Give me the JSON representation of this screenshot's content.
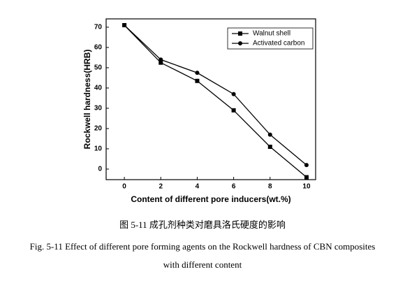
{
  "chart_data": {
    "type": "line",
    "x_label": "Content of different pore inducers(wt.%)",
    "y_label": "Rockwell hardness(HRB)",
    "x": [
      0,
      2,
      4,
      6,
      8,
      10
    ],
    "series": [
      {
        "name": "Walnut shell",
        "color": "#000000",
        "marker": "square",
        "values": [
          71,
          52.5,
          43.5,
          29,
          11,
          -4
        ]
      },
      {
        "name": "Activated carbon",
        "color": "#000000",
        "marker": "circle",
        "values": [
          71,
          54,
          47.5,
          37,
          17,
          2
        ]
      }
    ],
    "xlim": [
      -1,
      10.5
    ],
    "xticks": [
      0,
      2,
      4,
      6,
      8,
      10
    ],
    "ylim": [
      -5.2,
      74.1
    ],
    "yticks": [
      0,
      10,
      20,
      30,
      40,
      50,
      60,
      70
    ],
    "legend": "upper right",
    "caption": [
      "图 5-11 成孔剂种类对磨具洛氏硬度的影响",
      "Fig. 5-11 Effect of different pore forming agents on the Rockwell hardness of CBN composites",
      "with different content"
    ]
  }
}
